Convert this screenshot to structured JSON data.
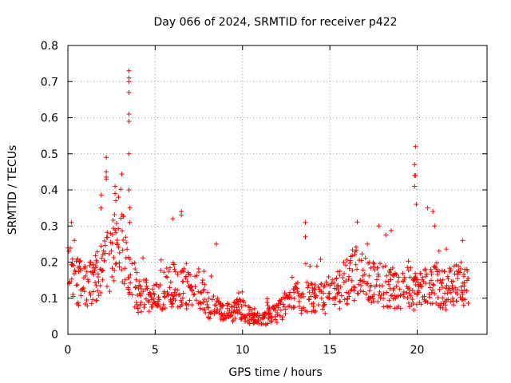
{
  "chart_data": {
    "type": "scatter",
    "title": "Day 066 of 2024, SRMTID for receiver p422",
    "xlabel": "GPS time / hours",
    "ylabel": "SRMTID / TECUs",
    "xlim": [
      0,
      24
    ],
    "ylim": [
      0,
      0.8
    ],
    "xticks": [
      0,
      5,
      10,
      15,
      20
    ],
    "xtick_labels": [
      "0",
      "5",
      "10",
      "15",
      "20"
    ],
    "yticks": [
      0,
      0.1,
      0.2,
      0.3,
      0.4,
      0.5,
      0.6,
      0.7,
      0.8
    ],
    "ytick_labels": [
      "0",
      "0.1",
      "0.2",
      "0.3",
      "0.4",
      "0.5",
      "0.6",
      "0.7",
      "0.8"
    ],
    "grid": true,
    "marker": "+",
    "series": [
      {
        "name": "SRMTID",
        "color": "#ff0000",
        "trend": {
          "x": [
            0,
            0.5,
            1,
            1.5,
            2,
            2.5,
            3,
            3.5,
            4,
            5,
            6,
            7,
            7.5,
            8,
            8.5,
            9,
            10,
            10.5,
            11,
            11.5,
            12,
            12.5,
            13,
            14,
            15,
            15.5,
            16,
            16.5,
            17,
            17.5,
            18,
            18.5,
            19,
            19.5,
            20,
            20.5,
            21,
            21.5,
            22,
            22.5,
            23
          ],
          "y": [
            0.18,
            0.15,
            0.13,
            0.15,
            0.19,
            0.22,
            0.25,
            0.19,
            0.11,
            0.1,
            0.14,
            0.12,
            0.13,
            0.08,
            0.07,
            0.06,
            0.07,
            0.05,
            0.04,
            0.05,
            0.06,
            0.08,
            0.1,
            0.1,
            0.1,
            0.12,
            0.15,
            0.17,
            0.15,
            0.14,
            0.14,
            0.13,
            0.12,
            0.14,
            0.11,
            0.13,
            0.15,
            0.12,
            0.13,
            0.14,
            0.13
          ]
        },
        "clusters": [
          {
            "x": 2.2,
            "y": 0.49
          },
          {
            "x": 2.2,
            "y": 0.45
          },
          {
            "x": 2.2,
            "y": 0.43
          },
          {
            "x": 2.7,
            "y": 0.41
          },
          {
            "x": 2.7,
            "y": 0.39
          },
          {
            "x": 2.75,
            "y": 0.37
          },
          {
            "x": 3.5,
            "y": 0.73
          },
          {
            "x": 3.5,
            "y": 0.71
          },
          {
            "x": 3.5,
            "y": 0.7
          },
          {
            "x": 3.5,
            "y": 0.67
          },
          {
            "x": 3.5,
            "y": 0.61
          },
          {
            "x": 3.5,
            "y": 0.59
          },
          {
            "x": 3.5,
            "y": 0.5
          },
          {
            "x": 3.5,
            "y": 0.4
          },
          {
            "x": 3.55,
            "y": 0.35
          },
          {
            "x": 3.55,
            "y": 0.31
          },
          {
            "x": 13.6,
            "y": 0.31
          },
          {
            "x": 13.6,
            "y": 0.27
          },
          {
            "x": 17.8,
            "y": 0.3
          },
          {
            "x": 19.9,
            "y": 0.52
          },
          {
            "x": 19.85,
            "y": 0.47
          },
          {
            "x": 19.85,
            "y": 0.44
          },
          {
            "x": 19.9,
            "y": 0.44
          },
          {
            "x": 19.85,
            "y": 0.41
          },
          {
            "x": 19.95,
            "y": 0.36
          },
          {
            "x": 20.6,
            "y": 0.35
          },
          {
            "x": 20.9,
            "y": 0.34
          },
          {
            "x": 21.0,
            "y": 0.3
          },
          {
            "x": 6.5,
            "y": 0.34
          },
          {
            "x": 6.5,
            "y": 0.33
          },
          {
            "x": 6.0,
            "y": 0.32
          },
          {
            "x": 8.5,
            "y": 0.25
          },
          {
            "x": 1.9,
            "y": 0.35
          },
          {
            "x": 0.2,
            "y": 0.31
          },
          {
            "x": 22.6,
            "y": 0.26
          }
        ]
      }
    ]
  }
}
